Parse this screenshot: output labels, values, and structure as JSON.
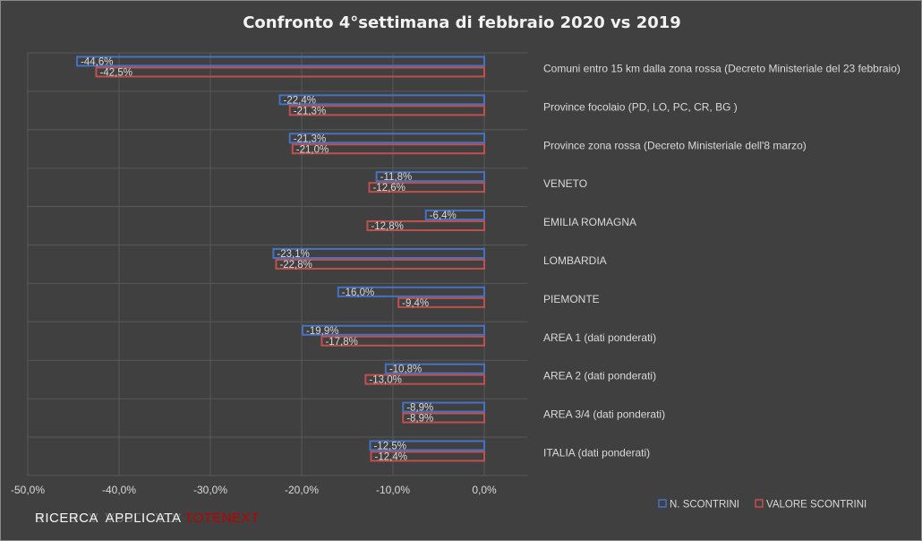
{
  "chart_data": {
    "type": "bar",
    "orientation": "horizontal",
    "title": "Confronto 4°settimana di febbraio 2020 vs 2019",
    "categories": [
      "Comuni entro 15 km dalla zona rossa (Decreto Ministeriale del 23 febbraio)",
      "Province focolaio (PD, LO, PC, CR,  BG )",
      "Province zona rossa (Decreto Ministeriale dell'8 marzo)",
      "VENETO",
      "EMILIA ROMAGNA",
      "LOMBARDIA",
      "PIEMONTE",
      "AREA 1 (dati ponderati)",
      "AREA 2 (dati ponderati)",
      "AREA 3/4 (dati ponderati)",
      "ITALIA (dati ponderati)"
    ],
    "series": [
      {
        "name": "N. SCONTRINI",
        "color": "#4472c4",
        "values": [
          -44.6,
          -22.4,
          -21.3,
          -11.8,
          -6.4,
          -23.1,
          -16.0,
          -19.9,
          -10.8,
          -8.9,
          -12.5
        ],
        "labels": [
          "-44,6%",
          "-22,4%",
          "-21,3%",
          "-11,8%",
          "-6,4%",
          "-23,1%",
          "-16,0%",
          "-19,9%",
          "-10,8%",
          "-8,9%",
          "-12,5%"
        ]
      },
      {
        "name": "VALORE SCONTRINI",
        "color": "#c0504d",
        "values": [
          -42.5,
          -21.3,
          -21.0,
          -12.6,
          -12.8,
          -22.8,
          -9.4,
          -17.8,
          -13.0,
          -8.9,
          -12.4
        ],
        "labels": [
          "-42,5%",
          "-21,3%",
          "-21,0%",
          "-12,6%",
          "-12,8%",
          "-22,8%",
          "-9,4%",
          "-17,8%",
          "-13,0%",
          "-8,9%",
          "-12,4%"
        ]
      }
    ],
    "xlim": [
      -50,
      0
    ],
    "xticks": [
      -50,
      -40,
      -30,
      -20,
      -10,
      0
    ],
    "xtick_labels": [
      "-50,0%",
      "-40,0%",
      "-30,0%",
      "-20,0%",
      "-10,0%",
      "0,0%"
    ],
    "grid": true,
    "legend_position": "bottom-right"
  },
  "footer": {
    "brand_main": "RICERCA  APPLICATA ",
    "brand_accent": "TOTENEXT"
  }
}
